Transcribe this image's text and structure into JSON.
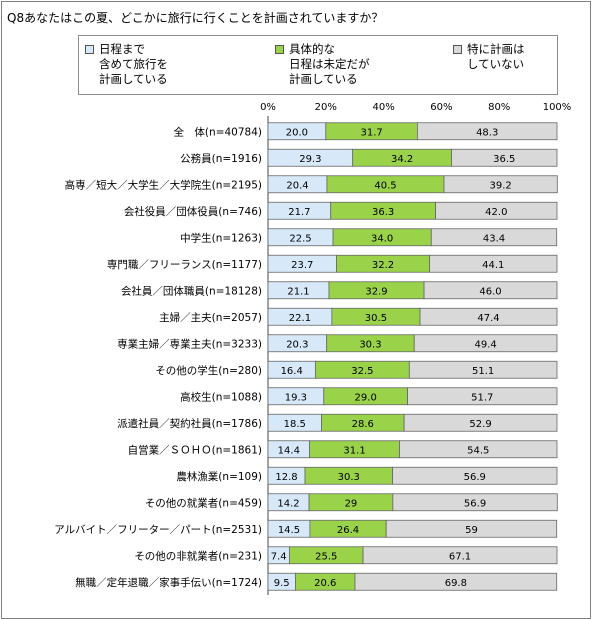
{
  "title": "Q8あなたはこの夏、どこかに旅行に行くことを計画されていますか？",
  "colors": {
    "s1": "#d7e8f8",
    "s2": "#9ad24a",
    "s3": "#d9d9d9",
    "border": "#666666"
  },
  "chart_data": {
    "type": "bar",
    "orientation": "horizontal-stacked-100",
    "xlim": [
      0,
      100
    ],
    "ticks": [
      "0%",
      "20%",
      "40%",
      "60%",
      "80%",
      "100%"
    ],
    "legend_position": "top",
    "series": [
      {
        "name": "日程まで\n含めて旅行を\n計画している",
        "values": [
          20.0,
          29.3,
          20.4,
          21.7,
          22.5,
          23.7,
          21.1,
          22.1,
          20.3,
          16.4,
          19.3,
          18.5,
          14.4,
          12.8,
          14.2,
          14.5,
          7.4,
          9.5
        ],
        "labels": [
          "20.0",
          "29.3",
          "20.4",
          "21.7",
          "22.5",
          "23.7",
          "21.1",
          "22.1",
          "20.3",
          "16.4",
          "19.3",
          "18.5",
          "14.4",
          "12.8",
          "14.2",
          "14.5",
          "7.4",
          "9.5"
        ]
      },
      {
        "name": "具体的な\n日程は未定だが\n計画している",
        "values": [
          31.7,
          34.2,
          40.5,
          36.3,
          34.0,
          32.2,
          32.9,
          30.5,
          30.3,
          32.5,
          29.0,
          28.6,
          31.1,
          30.3,
          29,
          26.4,
          25.5,
          20.6
        ],
        "labels": [
          "31.7",
          "34.2",
          "40.5",
          "36.3",
          "34.0",
          "32.2",
          "32.9",
          "30.5",
          "30.3",
          "32.5",
          "29.0",
          "28.6",
          "31.1",
          "30.3",
          "29",
          "26.4",
          "25.5",
          "20.6"
        ]
      },
      {
        "name": "特に計画は\nしていない",
        "values": [
          48.3,
          36.5,
          39.2,
          42.0,
          43.4,
          44.1,
          46.0,
          47.4,
          49.4,
          51.1,
          51.7,
          52.9,
          54.5,
          56.9,
          56.9,
          59,
          67.1,
          69.8
        ],
        "labels": [
          "48.3",
          "36.5",
          "39.2",
          "42.0",
          "43.4",
          "44.1",
          "46.0",
          "47.4",
          "49.4",
          "51.1",
          "51.7",
          "52.9",
          "54.5",
          "56.9",
          "56.9",
          "59",
          "67.1",
          "69.8"
        ]
      }
    ],
    "categories": [
      "全　体(n=40784)",
      "公務員(n=1916)",
      "高専／短大／大学生／大学院生(n=2195)",
      "会社役員／団体役員(n=746)",
      "中学生(n=1263)",
      "専門職／フリーランス(n=1177)",
      "会社員／団体職員(n=18128)",
      "主婦／主夫(n=2057)",
      "専業主婦／専業主夫(n=3233)",
      "その他の学生(n=280)",
      "高校生(n=1088)",
      "派遣社員／契約社員(n=1786)",
      "自営業／ＳＯＨＯ(n=1861)",
      "農林漁業(n=109)",
      "その他の就業者(n=459)",
      "アルバイト／フリーター／パート(n=2531)",
      "その他の非就業者(n=231)",
      "無職／定年退職／家事手伝い(n=1724)"
    ]
  }
}
